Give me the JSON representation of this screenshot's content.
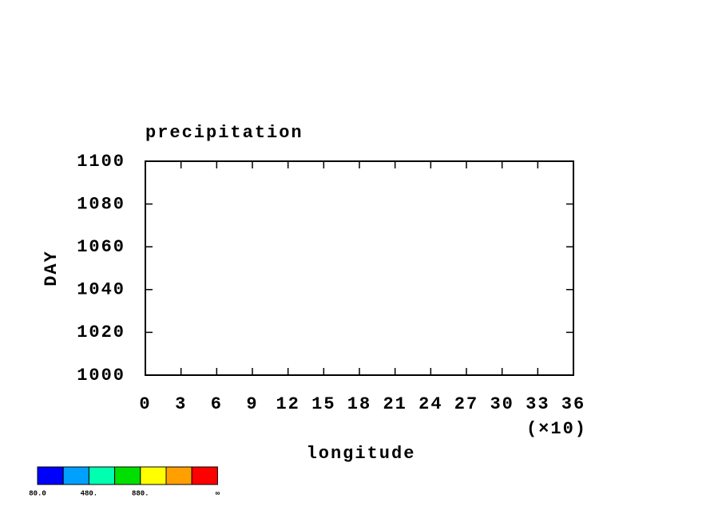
{
  "chart_data": {
    "type": "contour",
    "title": "precipitation",
    "x_label": "longitude",
    "x_multiplier": "(×10)",
    "y_label": "DAY",
    "xlim": [
      0,
      36
    ],
    "xticks": [
      0,
      3,
      6,
      9,
      12,
      15,
      18,
      21,
      24,
      27,
      30,
      33,
      36
    ],
    "ylim": [
      1000,
      1100
    ],
    "yticks": [
      1000,
      1020,
      1040,
      1060,
      1080,
      1100
    ],
    "colorbar": {
      "colors": [
        "#0000ff",
        "#00a0ff",
        "#00ffb0",
        "#00e000",
        "#ffff00",
        "#ffa000",
        "#ff0000"
      ],
      "boundary_labels": [
        "80.0",
        null,
        "480.",
        null,
        "880.",
        null,
        null,
        "∞"
      ]
    }
  }
}
